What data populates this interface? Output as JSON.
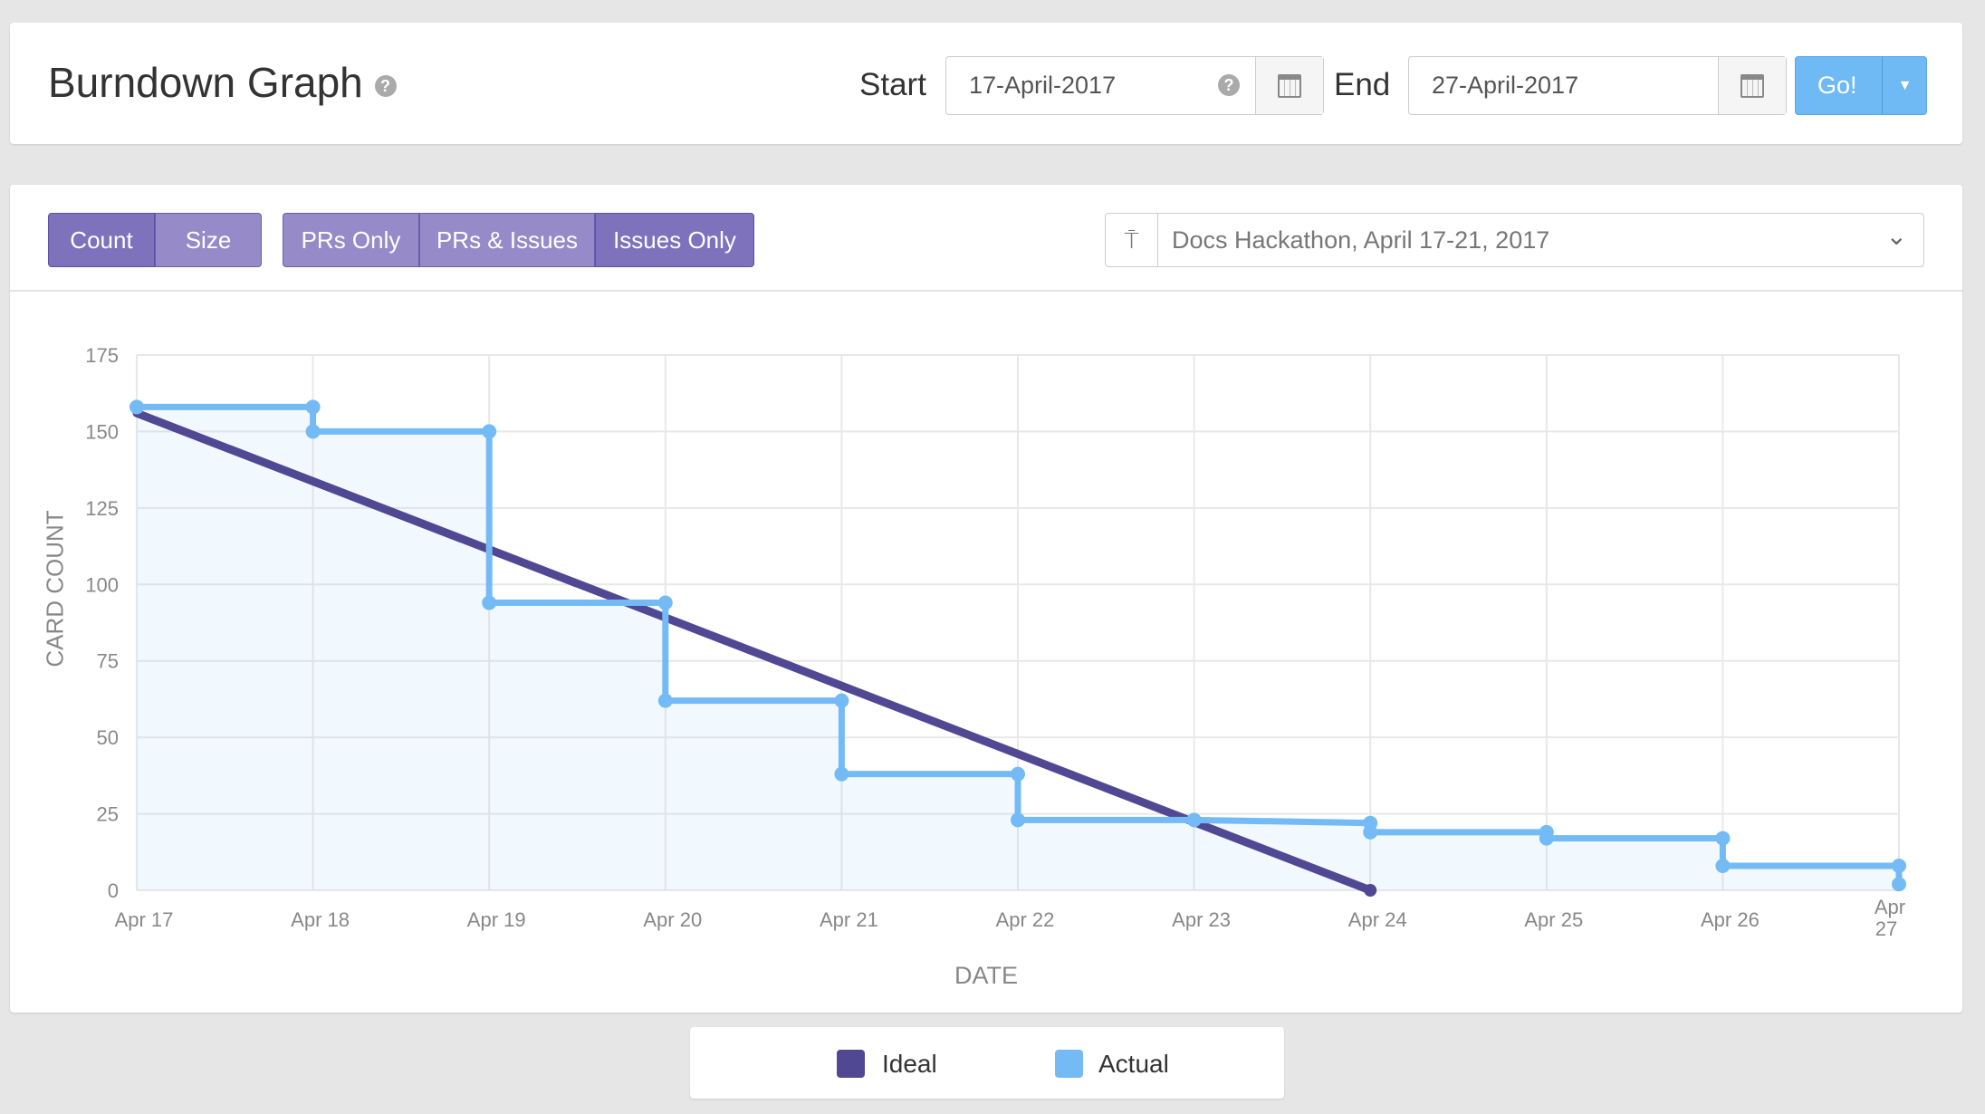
{
  "header": {
    "title": "Burndown Graph",
    "start_label": "Start",
    "start_value": "17-April-2017",
    "end_label": "End",
    "end_value": "27-April-2017",
    "go_label": "Go!"
  },
  "toolbar": {
    "count_label": "Count",
    "size_label": "Size",
    "prs_only_label": "PRs Only",
    "prs_issues_label": "PRs & Issues",
    "issues_only_label": "Issues Only",
    "active": [
      "Count",
      "Issues Only"
    ],
    "milestone": "Docs Hackathon, April 17-21, 2017"
  },
  "chart_data": {
    "type": "line",
    "xlabel": "DATE",
    "ylabel": "CARD COUNT",
    "categories": [
      "Apr 17",
      "Apr 18",
      "Apr 19",
      "Apr 20",
      "Apr 21",
      "Apr 22",
      "Apr 23",
      "Apr 24",
      "Apr 25",
      "Apr 26",
      "Apr 27"
    ],
    "yticks": [
      0,
      25,
      50,
      75,
      100,
      125,
      150,
      175
    ],
    "ylim": [
      0,
      175
    ],
    "grid": true,
    "legend": "bottom",
    "series": [
      {
        "name": "Ideal",
        "color": "#514894",
        "points": [
          [
            0,
            156
          ],
          [
            7,
            0
          ]
        ]
      },
      {
        "name": "Actual",
        "color": "#74bbf5",
        "points": [
          [
            0,
            158
          ],
          [
            1,
            158
          ],
          [
            1,
            150
          ],
          [
            2,
            150
          ],
          [
            2,
            94
          ],
          [
            3,
            94
          ],
          [
            3,
            62
          ],
          [
            4,
            62
          ],
          [
            4,
            38
          ],
          [
            5,
            38
          ],
          [
            5,
            23
          ],
          [
            6,
            23
          ],
          [
            7,
            22
          ],
          [
            7,
            19
          ],
          [
            8,
            19
          ],
          [
            8,
            17
          ],
          [
            9,
            17
          ],
          [
            9,
            8
          ],
          [
            10,
            8
          ],
          [
            10,
            2
          ]
        ]
      }
    ]
  },
  "legend": {
    "ideal": "Ideal",
    "actual": "Actual"
  }
}
